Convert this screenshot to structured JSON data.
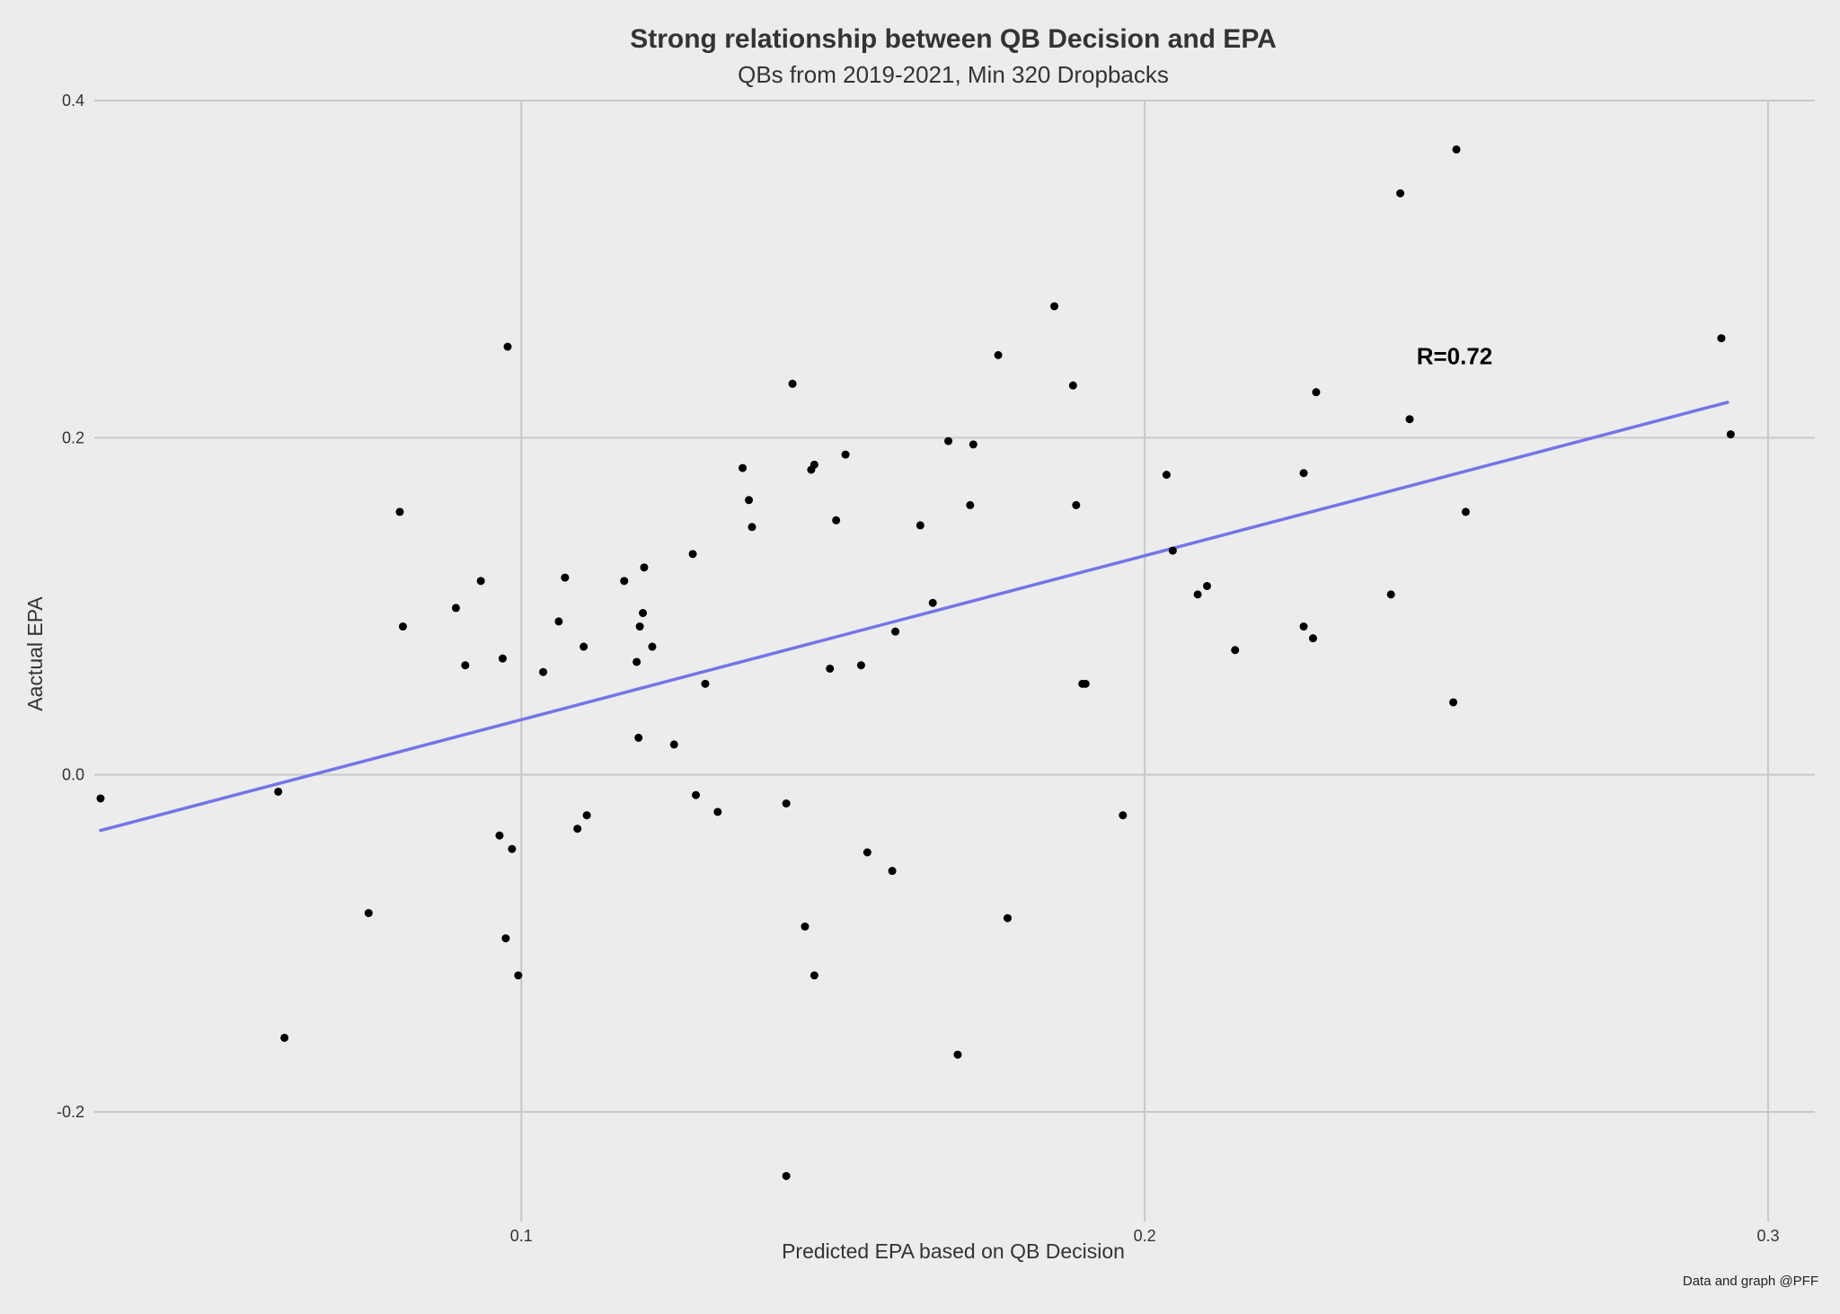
{
  "chart_data": {
    "type": "scatter",
    "title": "Strong relationship between QB Decision and EPA",
    "subtitle": "QBs from 2019-2021, Min 320 Dropbacks",
    "xlabel": "Predicted EPA based on QB Decision",
    "ylabel": "Aactual EPA",
    "caption": "Data and graph @PFF",
    "annotation": "R=0.72",
    "xlim": [
      0.0315,
      0.3075
    ],
    "ylim": [
      -0.265,
      0.4
    ],
    "xticks": [
      {
        "value": 0.1,
        "label": "0.1"
      },
      {
        "value": 0.2,
        "label": "0.2"
      },
      {
        "value": 0.3,
        "label": "0.3"
      }
    ],
    "yticks": [
      {
        "value": 0.4,
        "label": "0.4"
      },
      {
        "value": 0.2,
        "label": "0.2"
      },
      {
        "value": 0.0,
        "label": "0.0"
      },
      {
        "value": -0.2,
        "label": "-0.2"
      }
    ],
    "grid": true,
    "colors": {
      "background": "#ececec",
      "points": "#000000",
      "trend_line": "#7474e8",
      "grid": "#c8c8c8"
    },
    "trend_line": {
      "x": [
        0.0325,
        0.2935
      ],
      "y": [
        -0.033,
        0.221
      ]
    },
    "annotation_position": {
      "x": 0.2425,
      "y": 0.249
    },
    "points": [
      {
        "x": 0.0325,
        "y": -0.014
      },
      {
        "x": 0.061,
        "y": -0.01
      },
      {
        "x": 0.062,
        "y": -0.156
      },
      {
        "x": 0.0755,
        "y": -0.082
      },
      {
        "x": 0.0805,
        "y": 0.156
      },
      {
        "x": 0.081,
        "y": 0.088
      },
      {
        "x": 0.0895,
        "y": 0.099
      },
      {
        "x": 0.091,
        "y": 0.065
      },
      {
        "x": 0.0935,
        "y": 0.115
      },
      {
        "x": 0.0965,
        "y": -0.036
      },
      {
        "x": 0.097,
        "y": 0.069
      },
      {
        "x": 0.0975,
        "y": -0.097
      },
      {
        "x": 0.0978,
        "y": 0.254
      },
      {
        "x": 0.0985,
        "y": -0.044
      },
      {
        "x": 0.0995,
        "y": -0.119
      },
      {
        "x": 0.1035,
        "y": 0.061
      },
      {
        "x": 0.106,
        "y": 0.091
      },
      {
        "x": 0.107,
        "y": 0.117
      },
      {
        "x": 0.109,
        "y": -0.032
      },
      {
        "x": 0.11,
        "y": 0.076
      },
      {
        "x": 0.1105,
        "y": -0.024
      },
      {
        "x": 0.1165,
        "y": 0.115
      },
      {
        "x": 0.1185,
        "y": 0.067
      },
      {
        "x": 0.1188,
        "y": 0.022
      },
      {
        "x": 0.119,
        "y": 0.088
      },
      {
        "x": 0.1195,
        "y": 0.096
      },
      {
        "x": 0.1197,
        "y": 0.123
      },
      {
        "x": 0.121,
        "y": 0.076
      },
      {
        "x": 0.1245,
        "y": 0.018
      },
      {
        "x": 0.1275,
        "y": 0.131
      },
      {
        "x": 0.128,
        "y": -0.012
      },
      {
        "x": 0.1295,
        "y": 0.054
      },
      {
        "x": 0.1315,
        "y": -0.022
      },
      {
        "x": 0.1355,
        "y": 0.182
      },
      {
        "x": 0.1365,
        "y": 0.163
      },
      {
        "x": 0.137,
        "y": 0.147
      },
      {
        "x": 0.1425,
        "y": -0.017
      },
      {
        "x": 0.1425,
        "y": -0.238
      },
      {
        "x": 0.1435,
        "y": 0.232
      },
      {
        "x": 0.1455,
        "y": -0.09
      },
      {
        "x": 0.147,
        "y": -0.119
      },
      {
        "x": 0.1465,
        "y": 0.181
      },
      {
        "x": 0.147,
        "y": 0.184
      },
      {
        "x": 0.1495,
        "y": 0.063
      },
      {
        "x": 0.1505,
        "y": 0.151
      },
      {
        "x": 0.152,
        "y": 0.19
      },
      {
        "x": 0.1545,
        "y": 0.065
      },
      {
        "x": 0.1555,
        "y": -0.046
      },
      {
        "x": 0.1595,
        "y": -0.057
      },
      {
        "x": 0.16,
        "y": 0.085
      },
      {
        "x": 0.164,
        "y": 0.148
      },
      {
        "x": 0.166,
        "y": 0.102
      },
      {
        "x": 0.1685,
        "y": 0.198
      },
      {
        "x": 0.17,
        "y": -0.166
      },
      {
        "x": 0.172,
        "y": 0.16
      },
      {
        "x": 0.1725,
        "y": 0.196
      },
      {
        "x": 0.1765,
        "y": 0.249
      },
      {
        "x": 0.178,
        "y": -0.085
      },
      {
        "x": 0.1855,
        "y": 0.278
      },
      {
        "x": 0.1885,
        "y": 0.231
      },
      {
        "x": 0.189,
        "y": 0.16
      },
      {
        "x": 0.19,
        "y": 0.054
      },
      {
        "x": 0.1905,
        "y": 0.054
      },
      {
        "x": 0.1965,
        "y": -0.024
      },
      {
        "x": 0.2035,
        "y": 0.178
      },
      {
        "x": 0.2045,
        "y": 0.133
      },
      {
        "x": 0.2085,
        "y": 0.107
      },
      {
        "x": 0.21,
        "y": 0.112
      },
      {
        "x": 0.2145,
        "y": 0.074
      },
      {
        "x": 0.2255,
        "y": 0.179
      },
      {
        "x": 0.2255,
        "y": 0.088
      },
      {
        "x": 0.227,
        "y": 0.081
      },
      {
        "x": 0.2275,
        "y": 0.227
      },
      {
        "x": 0.2395,
        "y": 0.107
      },
      {
        "x": 0.241,
        "y": 0.345
      },
      {
        "x": 0.2425,
        "y": 0.211
      },
      {
        "x": 0.2495,
        "y": 0.043
      },
      {
        "x": 0.25,
        "y": 0.371
      },
      {
        "x": 0.2515,
        "y": 0.156
      },
      {
        "x": 0.2925,
        "y": 0.259
      },
      {
        "x": 0.294,
        "y": 0.202
      }
    ]
  }
}
